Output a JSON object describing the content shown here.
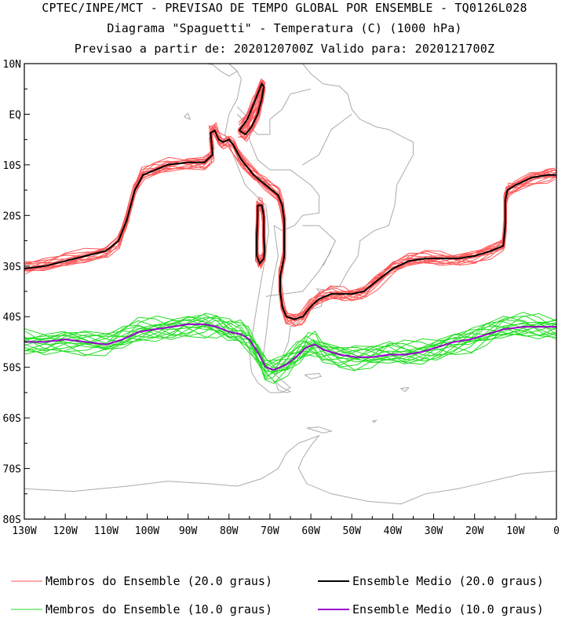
{
  "chart_data": {
    "type": "line",
    "title": "CPTEC/INPE/MCT - PREVISAO DE TEMPO GLOBAL POR ENSEMBLE - TQ0126L028",
    "subtitle": "Diagrama \"Spaguetti\" - Temperatura (C) (1000 hPa)",
    "subtitle2": "Previsao a partir de: 2020120700Z  Valido para: 2020121700Z",
    "xlim": [
      -130,
      0
    ],
    "ylim": [
      -80,
      10
    ],
    "x_ticks": [
      -130,
      -120,
      -110,
      -100,
      -90,
      -80,
      -70,
      -60,
      -50,
      -40,
      -30,
      -20,
      -10,
      0
    ],
    "x_tick_labels": [
      "130W",
      "120W",
      "110W",
      "100W",
      "90W",
      "80W",
      "70W",
      "60W",
      "50W",
      "40W",
      "30W",
      "20W",
      "10W",
      "0"
    ],
    "y_ticks": [
      10,
      0,
      -10,
      -20,
      -30,
      -40,
      -50,
      -60,
      -70,
      -80
    ],
    "y_tick_labels": [
      "10N",
      "EQ",
      "10S",
      "20S",
      "30S",
      "40S",
      "50S",
      "60S",
      "70S",
      "80S"
    ],
    "colors": {
      "members20": "#ff5555",
      "mean20": "#000000",
      "members10": "#22dd22",
      "mean10": "#9900cc",
      "coast": "#aaaaaa"
    },
    "legend": [
      {
        "label": "Membros do Ensemble (20.0 graus)",
        "color": "#ff5555",
        "kind": "members"
      },
      {
        "label": "Ensemble Medio (20.0 graus)",
        "color": "#000000",
        "kind": "mean"
      },
      {
        "label": "Membros do Ensemble (10.0 graus)",
        "color": "#22dd22",
        "kind": "members"
      },
      {
        "label": "Ensemble Medio (10.0 graus)",
        "color": "#9900cc",
        "kind": "mean"
      }
    ],
    "series": [
      {
        "level": 20,
        "kind": "mean",
        "points": [
          [
            -130,
            -30.5
          ],
          [
            -125,
            -30
          ],
          [
            -120,
            -29
          ],
          [
            -115,
            -28
          ],
          [
            -110,
            -27
          ],
          [
            -107,
            -25
          ],
          [
            -105,
            -21
          ],
          [
            -103,
            -15
          ],
          [
            -101,
            -12
          ],
          [
            -98,
            -11
          ],
          [
            -95,
            -10
          ],
          [
            -90,
            -9.5
          ],
          [
            -86,
            -9.5
          ],
          [
            -84,
            -8
          ],
          [
            -84.5,
            -3.7
          ],
          [
            -83.5,
            -3.2
          ],
          [
            -82.5,
            -5
          ],
          [
            -81.5,
            -5.5
          ],
          [
            -80,
            -5
          ],
          [
            -79,
            -6
          ],
          [
            -77,
            -9
          ],
          [
            -74,
            -12
          ],
          [
            -71,
            -14
          ],
          [
            -68,
            -16
          ],
          [
            -67,
            -18
          ],
          [
            -66.5,
            -21
          ],
          [
            -66.5,
            -25
          ],
          [
            -66.5,
            -28
          ],
          [
            -67,
            -30
          ],
          [
            -67.5,
            -32
          ],
          [
            -67.5,
            -35
          ],
          [
            -67,
            -38
          ],
          [
            -66,
            -40
          ],
          [
            -64,
            -40.5
          ],
          [
            -62,
            -40
          ],
          [
            -60,
            -38
          ],
          [
            -58,
            -36.5
          ],
          [
            -55,
            -35.5
          ],
          [
            -52,
            -35.5
          ],
          [
            -50,
            -35.5
          ],
          [
            -47,
            -35
          ],
          [
            -44,
            -33
          ],
          [
            -40,
            -30.5
          ],
          [
            -36,
            -29
          ],
          [
            -32,
            -28.5
          ],
          [
            -28,
            -28.5
          ],
          [
            -24,
            -28.5
          ],
          [
            -20,
            -28
          ],
          [
            -16,
            -27
          ],
          [
            -13,
            -26
          ],
          [
            -12.5,
            -22
          ],
          [
            -12.5,
            -17
          ],
          [
            -12,
            -15
          ],
          [
            -10,
            -14
          ],
          [
            -6,
            -12.5
          ],
          [
            -2,
            -12
          ],
          [
            0,
            -12
          ]
        ]
      },
      {
        "level": 20,
        "kind": "mean",
        "points": [
          [
            -77.5,
            -3.2
          ],
          [
            -75.5,
            -1
          ],
          [
            -74,
            2
          ],
          [
            -73,
            4
          ],
          [
            -72,
            6
          ],
          [
            -71.5,
            5.5
          ],
          [
            -72,
            3
          ],
          [
            -73,
            0
          ],
          [
            -74.5,
            -2.5
          ],
          [
            -76,
            -4
          ],
          [
            -77.5,
            -3.2
          ]
        ]
      },
      {
        "level": 20,
        "kind": "mean",
        "points": [
          [
            -73,
            -18
          ],
          [
            -72,
            -18
          ],
          [
            -71.5,
            -20
          ],
          [
            -71.5,
            -24
          ],
          [
            -71.3,
            -27
          ],
          [
            -71.5,
            -28.5
          ],
          [
            -72.5,
            -29.5
          ],
          [
            -73.2,
            -28
          ],
          [
            -73.2,
            -24
          ],
          [
            -73,
            -20
          ],
          [
            -73,
            -18
          ]
        ]
      },
      {
        "level": 10,
        "kind": "mean",
        "points": [
          [
            -130,
            -45
          ],
          [
            -125,
            -45
          ],
          [
            -120,
            -44.5
          ],
          [
            -115,
            -45
          ],
          [
            -110,
            -45.5
          ],
          [
            -106,
            -44.5
          ],
          [
            -102,
            -43
          ],
          [
            -98,
            -42.5
          ],
          [
            -94,
            -42
          ],
          [
            -90,
            -41.5
          ],
          [
            -86,
            -41.5
          ],
          [
            -83,
            -42
          ],
          [
            -80,
            -43
          ],
          [
            -77,
            -43.5
          ],
          [
            -75,
            -44.5
          ],
          [
            -73,
            -47
          ],
          [
            -71,
            -50
          ],
          [
            -69,
            -50.5
          ],
          [
            -66,
            -49.5
          ],
          [
            -63,
            -47.5
          ],
          [
            -61,
            -46
          ],
          [
            -59,
            -45.5
          ],
          [
            -57,
            -46.5
          ],
          [
            -53,
            -47.5
          ],
          [
            -49,
            -48
          ],
          [
            -45,
            -48
          ],
          [
            -41,
            -47.5
          ],
          [
            -37,
            -47.5
          ],
          [
            -33,
            -47
          ],
          [
            -29,
            -46
          ],
          [
            -25,
            -45
          ],
          [
            -21,
            -44.5
          ],
          [
            -17,
            -43.5
          ],
          [
            -13,
            -42.5
          ],
          [
            -8,
            -42
          ],
          [
            -4,
            -42
          ],
          [
            0,
            -42
          ]
        ]
      }
    ]
  }
}
